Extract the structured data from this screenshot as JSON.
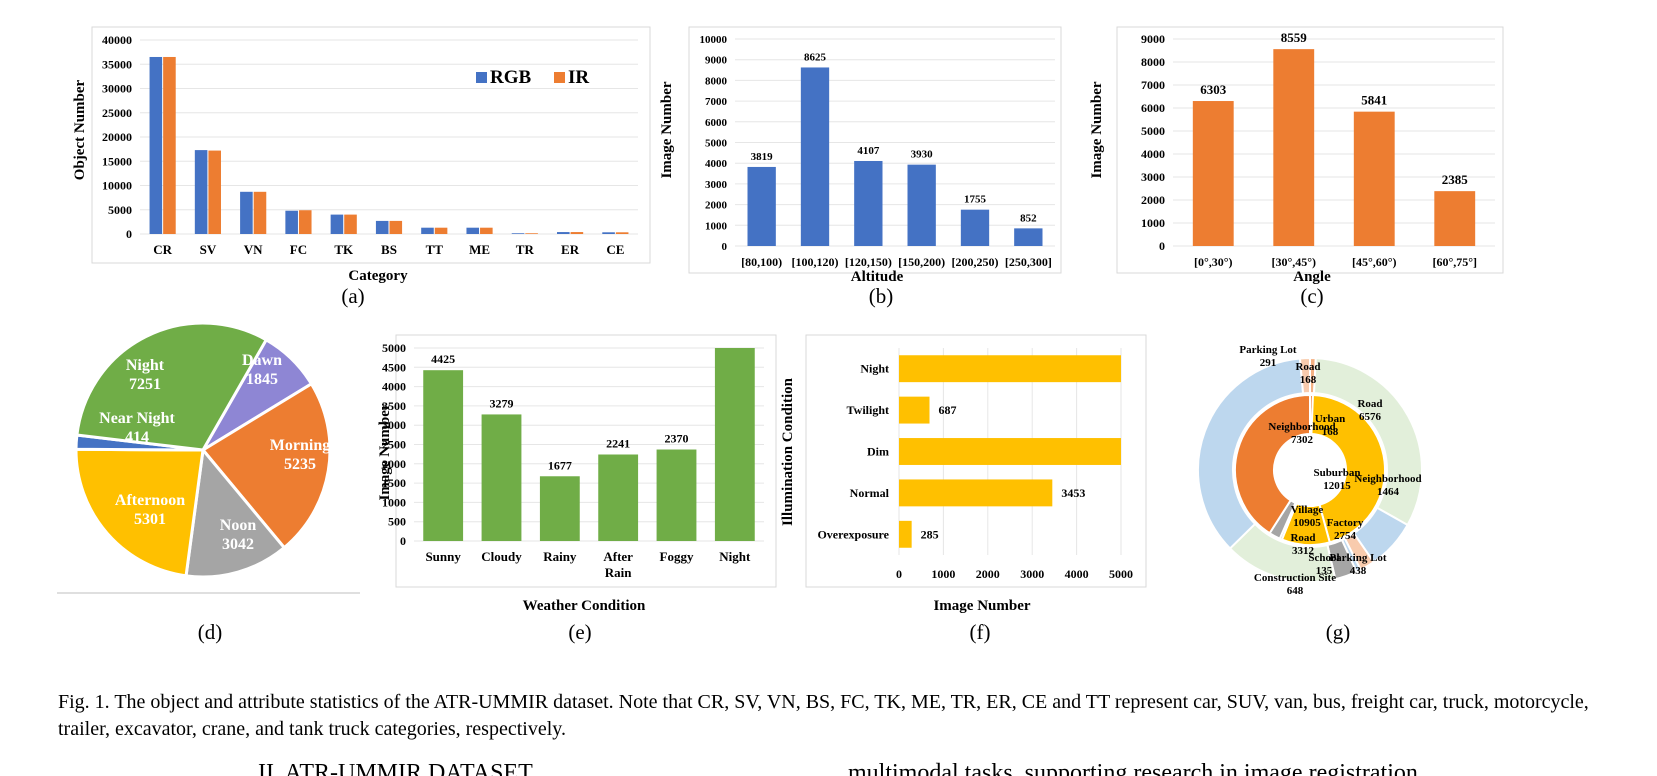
{
  "colors": {
    "blue": "#4472C4",
    "orange": "#ED7D31",
    "green": "#70AD47",
    "gold": "#FFC000",
    "gray": "#A5A5A5",
    "purple": "#8E86D4",
    "lightblue": "#BDD7EE",
    "lightgreen": "#E2EFDA",
    "lightgold": "#FFF2CC",
    "brown": "#C9A27E"
  },
  "subcaptions": {
    "a": "(a)",
    "b": "(b)",
    "c": "(c)",
    "d": "(d)",
    "e": "(e)",
    "f": "(f)",
    "g": "(g)"
  },
  "caption": "Fig. 1.  The object and attribute statistics of the ATR-UMMIR dataset. Note that CR, SV, VN, BS, FC, TK, ME, TR, ER, CE and TT represent car, SUV, van, bus, freight car, truck, motorcycle, trailer, excavator, crane, and tank truck categories, respectively.",
  "section_heading": "II.  ATR-UMMIR DATASET",
  "body_fragment": "multimodal tasks, supporting research in image registration,",
  "chart_data": [
    {
      "id": "a",
      "type": "bar",
      "title": "",
      "xlabel": "Category",
      "ylabel": "Object Number",
      "ylim": [
        0,
        40000
      ],
      "yticks": [
        0,
        5000,
        10000,
        15000,
        20000,
        25000,
        30000,
        35000,
        40000
      ],
      "categories": [
        "CR",
        "SV",
        "VN",
        "FC",
        "TK",
        "BS",
        "TT",
        "ME",
        "TR",
        "ER",
        "CE"
      ],
      "series": [
        {
          "name": "RGB",
          "color": "#4472C4",
          "values": [
            36500,
            17300,
            8700,
            4800,
            4000,
            2700,
            1300,
            1300,
            150,
            400,
            350
          ]
        },
        {
          "name": "IR",
          "color": "#ED7D31",
          "values": [
            36500,
            17200,
            8700,
            4900,
            4000,
            2700,
            1300,
            1300,
            150,
            400,
            350
          ]
        }
      ],
      "grid": true,
      "legend": "top-right"
    },
    {
      "id": "b",
      "type": "bar",
      "title": "",
      "xlabel": "Altitude",
      "ylabel": "Image Number",
      "ylim": [
        0,
        10000
      ],
      "yticks": [
        0,
        1000,
        2000,
        3000,
        4000,
        5000,
        6000,
        7000,
        8000,
        9000,
        10000
      ],
      "categories": [
        "[80,100)",
        "[100,120)",
        "[120,150)",
        "[150,200)",
        "[200,250)",
        "[250,300]"
      ],
      "values": [
        3819,
        8625,
        4107,
        3930,
        1755,
        852
      ],
      "color": "#4472C4",
      "data_labels": true,
      "grid": true
    },
    {
      "id": "c",
      "type": "bar",
      "title": "",
      "xlabel": "Angle",
      "ylabel": "Image Number",
      "ylim": [
        0,
        9000
      ],
      "yticks": [
        0,
        1000,
        2000,
        3000,
        4000,
        5000,
        6000,
        7000,
        8000,
        9000
      ],
      "categories": [
        "[0°,30°)",
        "[30°,45°)",
        "[45°,60°)",
        "[60°,75°]"
      ],
      "values": [
        6303,
        8559,
        5841,
        2385
      ],
      "color": "#ED7D31",
      "data_labels": true,
      "grid": true
    },
    {
      "id": "d",
      "type": "pie",
      "title": "",
      "slices": [
        {
          "label": "Dawn",
          "value": 1845,
          "color": "#8E86D4"
        },
        {
          "label": "Morning",
          "value": 5235,
          "color": "#ED7D31"
        },
        {
          "label": "Noon",
          "value": 3042,
          "color": "#A5A5A5"
        },
        {
          "label": "Afternoon",
          "value": 5301,
          "color": "#FFC000"
        },
        {
          "label": "Near Night",
          "value": 414,
          "color": "#4472C4"
        },
        {
          "label": "Night",
          "value": 7251,
          "color": "#70AD47"
        }
      ]
    },
    {
      "id": "e",
      "type": "bar",
      "title": "",
      "xlabel": "Weather Condition",
      "ylabel": "Image Number",
      "ylim": [
        0,
        5000
      ],
      "yticks": [
        0,
        500,
        1000,
        1500,
        2000,
        2500,
        3000,
        3500,
        4000,
        4500,
        5000
      ],
      "categories": [
        "Sunny",
        "Cloudy",
        "Rainy",
        "After Rain",
        "Foggy",
        "Night"
      ],
      "values": [
        4425,
        3279,
        1677,
        2241,
        2370,
        5000
      ],
      "data_labels": [
        "4425",
        "3279",
        "1677",
        "2241",
        "2370",
        ""
      ],
      "color": "#70AD47",
      "grid": true
    },
    {
      "id": "f",
      "type": "bar",
      "orientation": "horizontal",
      "title": "",
      "xlabel": "Image Number",
      "ylabel": "Illumination Condition",
      "xlim": [
        0,
        5000
      ],
      "xticks": [
        0,
        1000,
        2000,
        3000,
        4000,
        5000
      ],
      "categories": [
        "Night",
        "Twilight",
        "Dim",
        "Normal",
        "Overexposure"
      ],
      "values": [
        5000,
        687,
        5000,
        3453,
        285
      ],
      "data_labels": [
        "",
        "687",
        "",
        "3453",
        "285"
      ],
      "color": "#FFC000",
      "grid": true
    },
    {
      "id": "g",
      "type": "pie",
      "subtype": "sunburst",
      "inner": [
        {
          "label": "Urban",
          "value": 168,
          "color": "#ED7D31"
        },
        {
          "label": "Suburban",
          "value": 12015,
          "color": "#FFC000"
        },
        {
          "label": "Factory",
          "value": 2754,
          "color": "#FFC000"
        },
        {
          "label": "School",
          "value": 135,
          "color": "#A5A5A5"
        },
        {
          "label": "Construction Site",
          "value": 648,
          "color": "#A5A5A5"
        },
        {
          "label": "Village",
          "value": 10905,
          "color": "#ED7D31"
        }
      ],
      "outer": [
        {
          "label": "Road",
          "value": 168,
          "color": "#F4B183"
        },
        {
          "label": "Road",
          "value": 6576,
          "color": "#E2EFDA"
        },
        {
          "label": "Neighborhood",
          "value": 1464,
          "color": "#BDD7EE"
        },
        {
          "label": "Parking Lot",
          "value": 438,
          "color": "#F8CBAD"
        },
        {
          "label": "School",
          "value": 135,
          "color": "#BDD7EE"
        },
        {
          "label": "Construction Site",
          "value": 648,
          "color": "#A5A5A5"
        },
        {
          "label": "Road",
          "value": 3312,
          "color": "#E2EFDA"
        },
        {
          "label": "Neighborhood",
          "value": 7302,
          "color": "#BDD7EE"
        },
        {
          "label": "Parking Lot",
          "value": 291,
          "color": "#F8CBAD"
        }
      ],
      "labels": [
        {
          "text": "Parking Lot",
          "value": "291"
        },
        {
          "text": "Road",
          "value": "168"
        },
        {
          "text": "Road",
          "value": "6576"
        },
        {
          "text": "Urban",
          "value": "168"
        },
        {
          "text": "Neighborhood",
          "value": "7302"
        },
        {
          "text": "Suburban",
          "value": "12015"
        },
        {
          "text": "Neighborhood",
          "value": "1464"
        },
        {
          "text": "Village",
          "value": "10905"
        },
        {
          "text": "Factory",
          "value": "2754"
        },
        {
          "text": "Road",
          "value": "3312"
        },
        {
          "text": "School",
          "value": "135"
        },
        {
          "text": "Parking Lot",
          "value": "438"
        },
        {
          "text": "Construction Site",
          "value": "648"
        }
      ]
    }
  ]
}
